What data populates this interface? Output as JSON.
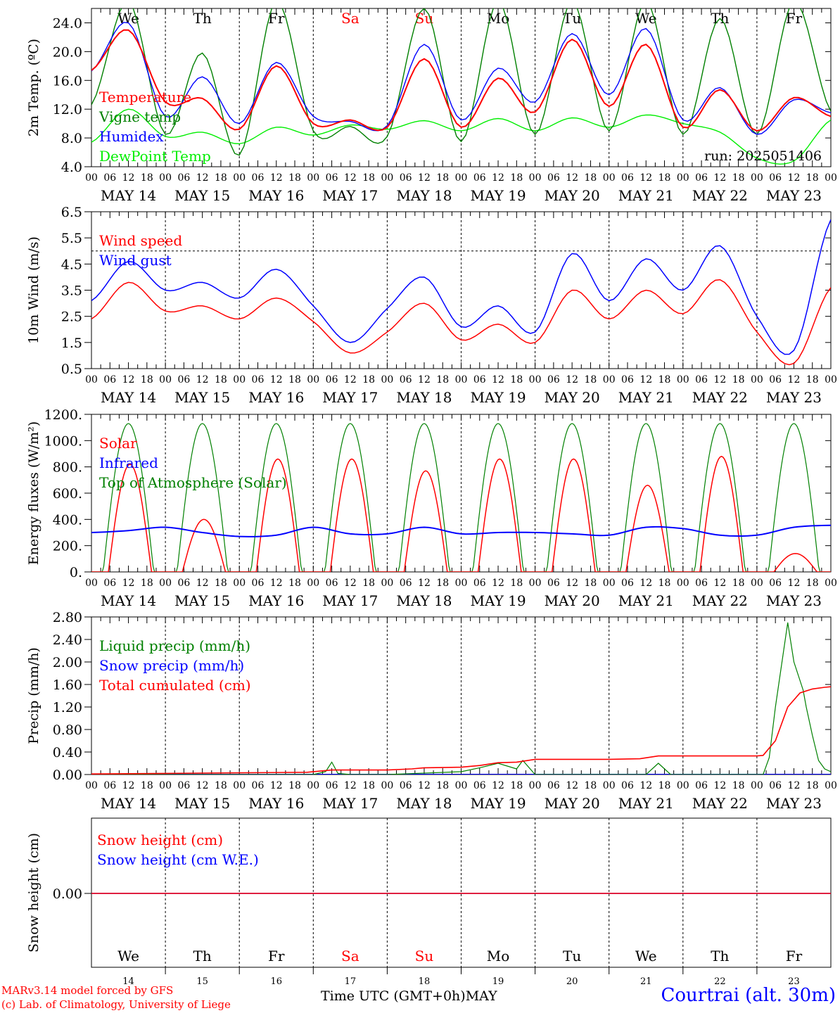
{
  "footer": {
    "model_line": "MARv3.14 model forced by GFS",
    "copyright_line": "(c) Lab. of Climatology, University of Liege",
    "axis_title": "Time UTC (GMT+0h)",
    "axis_month": "MAY",
    "station": "Courtrai (alt. 30m)"
  },
  "colors": {
    "red": "#ff0000",
    "blue": "#0000ff",
    "green": "#008000",
    "lightgreen": "#00ee00",
    "black": "#000000"
  },
  "chart_data": [
    {
      "id": "temperature",
      "type": "line",
      "ylabel": "2m Temp. (ºC)",
      "ylim": [
        4.0,
        26.0
      ],
      "yticks": [
        "24.0",
        "20.0",
        "16.0",
        "12.0",
        "8.0",
        "4.0"
      ],
      "ytick_values": [
        24,
        20,
        16,
        12,
        8,
        4
      ],
      "day_names": [
        "We",
        "Th",
        "Fr",
        "Sa",
        "Su",
        "Mo",
        "Tu",
        "We",
        "Th",
        "Fr"
      ],
      "day_name_colors": [
        "#000000",
        "#000000",
        "#000000",
        "#ff0000",
        "#ff0000",
        "#000000",
        "#000000",
        "#000000",
        "#000000",
        "#000000"
      ],
      "run_label": "run: 2025051406",
      "x_hours": [
        0,
        12,
        24,
        36,
        48,
        60,
        72,
        84,
        96,
        108,
        120,
        132,
        144,
        156,
        168,
        180,
        192,
        204,
        216,
        228,
        240
      ],
      "series": [
        {
          "name": "Temperature",
          "color": "#ff0000",
          "values": [
            17.4,
            23.0,
            13.0,
            13.5,
            9.2,
            18.0,
            10.0,
            10.5,
            9.5,
            19.0,
            9.5,
            16.3,
            11.6,
            21.7,
            12.4,
            21.0,
            9.5,
            14.7,
            9.0,
            13.6,
            11.0
          ]
        },
        {
          "name": "Vigne temp",
          "color": "#008000",
          "values": [
            12.6,
            27.0,
            8.5,
            19.8,
            5.6,
            27.0,
            9.0,
            9.6,
            8.2,
            26.0,
            7.5,
            27.0,
            8.5,
            27.0,
            9.0,
            27.0,
            8.5,
            24.6,
            8.5,
            27.0,
            11.7
          ]
        },
        {
          "name": "Humidex",
          "color": "#0000ff",
          "values": [
            17.3,
            24.0,
            11.0,
            16.5,
            10.0,
            18.5,
            11.0,
            10.3,
            9.7,
            21.0,
            10.5,
            17.7,
            13.0,
            22.5,
            14.0,
            23.2,
            10.5,
            15.0,
            8.5,
            13.3,
            11.5
          ]
        },
        {
          "name": "DewPoint Temp",
          "color": "#00ee00",
          "values": [
            7.4,
            12.0,
            8.2,
            8.8,
            7.2,
            9.5,
            8.4,
            9.8,
            9.2,
            10.4,
            9.0,
            10.7,
            9.0,
            10.8,
            9.5,
            11.2,
            10.0,
            8.8,
            5.2,
            4.8,
            10.5
          ]
        }
      ]
    },
    {
      "id": "wind",
      "type": "line",
      "ylabel": "10m Wind (m/s)",
      "ylim": [
        0.5,
        6.5
      ],
      "yticks": [
        "6.5",
        "5.5",
        "4.5",
        "3.5",
        "2.5",
        "1.5",
        "0.5"
      ],
      "ytick_values": [
        6.5,
        5.5,
        4.5,
        3.5,
        2.5,
        1.5,
        0.5
      ],
      "threshold": 5.0,
      "x_hours": [
        0,
        12,
        24,
        36,
        48,
        60,
        72,
        84,
        96,
        108,
        120,
        132,
        144,
        156,
        168,
        180,
        192,
        204,
        216,
        228,
        240
      ],
      "series": [
        {
          "name": "Wind speed",
          "color": "#ff0000",
          "values": [
            2.4,
            3.8,
            2.7,
            2.9,
            2.4,
            3.2,
            2.3,
            1.1,
            1.9,
            3.0,
            1.6,
            2.2,
            1.5,
            3.5,
            2.4,
            3.5,
            2.6,
            3.9,
            1.9,
            0.7,
            3.6
          ]
        },
        {
          "name": "Wind gust",
          "color": "#0000ff",
          "values": [
            3.1,
            4.6,
            3.5,
            3.8,
            3.2,
            4.3,
            2.9,
            1.5,
            2.8,
            4.0,
            2.1,
            2.9,
            1.9,
            4.9,
            3.1,
            4.7,
            3.5,
            5.2,
            2.5,
            1.2,
            6.2
          ]
        }
      ]
    },
    {
      "id": "energy",
      "type": "line",
      "ylabel": "Energy fluxes (W/m²)",
      "ylim": [
        0,
        1200
      ],
      "yticks": [
        "1200.",
        "1000.",
        "800.",
        "600.",
        "400.",
        "200.",
        "0."
      ],
      "ytick_values": [
        1200,
        1000,
        800,
        600,
        400,
        200,
        0
      ],
      "x_hours": [
        0,
        12,
        24,
        36,
        48,
        60,
        72,
        84,
        96,
        108,
        120,
        132,
        144,
        156,
        168,
        180,
        192,
        204,
        216,
        228,
        240
      ],
      "series": [
        {
          "name": "Solar",
          "color": "#ff0000",
          "daily_peak": [
            820,
            400,
            860,
            860,
            770,
            860,
            860,
            660,
            880,
            140
          ]
        },
        {
          "name": "Infrared",
          "color": "#0000ff",
          "values": [
            300,
            315,
            340,
            300,
            270,
            280,
            340,
            290,
            290,
            340,
            290,
            300,
            300,
            290,
            280,
            340,
            330,
            280,
            280,
            340,
            355
          ]
        },
        {
          "name": "Top of Atmosphere (Solar)",
          "color": "#008000",
          "daily_peak": 1130
        }
      ]
    },
    {
      "id": "precip",
      "type": "line",
      "ylabel": "Precip (mm/h)",
      "ylim": [
        0,
        2.8
      ],
      "yticks": [
        "2.80",
        "2.40",
        "2.00",
        "1.60",
        "1.20",
        "0.80",
        "0.40",
        "0.00"
      ],
      "ytick_values": [
        2.8,
        2.4,
        2.0,
        1.6,
        1.2,
        0.8,
        0.4,
        0.0
      ],
      "series": [
        {
          "name": "Liquid precip (mm/h)",
          "color": "#008000",
          "x": [
            0,
            72,
            76,
            78,
            80,
            84,
            96,
            120,
            126,
            132,
            138,
            140,
            144,
            168,
            180,
            184,
            188,
            200,
            218,
            220,
            222,
            226,
            228,
            231,
            232,
            234,
            236,
            238,
            240
          ],
          "values": [
            0,
            0,
            0.05,
            0.22,
            0.02,
            0,
            0,
            0.05,
            0.12,
            0.2,
            0.1,
            0.25,
            0,
            0,
            0,
            0.2,
            0,
            0,
            0,
            0.3,
            1.2,
            2.7,
            2.0,
            1.5,
            1.2,
            0.7,
            0.25,
            0.1,
            0.05
          ]
        },
        {
          "name": "Snow precip (mm/h)",
          "color": "#0000ff",
          "x": [
            0,
            240
          ],
          "values": [
            0,
            0
          ]
        },
        {
          "name": "Total cumulated (cm)",
          "color": "#ff0000",
          "x": [
            0,
            24,
            48,
            70,
            78,
            84,
            96,
            104,
            108,
            120,
            126,
            132,
            138,
            144,
            168,
            178,
            184,
            192,
            216,
            218,
            222,
            226,
            230,
            234,
            238,
            240
          ],
          "values": [
            0.01,
            0.02,
            0.03,
            0.04,
            0.08,
            0.08,
            0.08,
            0.1,
            0.12,
            0.13,
            0.16,
            0.21,
            0.22,
            0.27,
            0.27,
            0.28,
            0.33,
            0.33,
            0.33,
            0.34,
            0.6,
            1.2,
            1.45,
            1.52,
            1.55,
            1.56
          ]
        }
      ]
    },
    {
      "id": "snow",
      "type": "line",
      "ylabel": "Snow height (cm)",
      "yticks": [
        "0.00"
      ],
      "ytick_values": [
        0
      ],
      "day_numbers": [
        "14",
        "15",
        "16",
        "17",
        "18",
        "19",
        "20",
        "21",
        "22",
        "23"
      ],
      "series": [
        {
          "name": "Snow height (cm)",
          "color": "#ff0000",
          "values": [
            0,
            0
          ]
        },
        {
          "name": "Snow height (cm W.E.)",
          "color": "#0000ff",
          "values": [
            0,
            0
          ]
        }
      ]
    }
  ],
  "hour_labels": [
    "00",
    "06",
    "12",
    "18"
  ],
  "date_labels": [
    "MAY 14",
    "MAY 15",
    "MAY 16",
    "MAY 17",
    "MAY 18",
    "MAY 19",
    "MAY 20",
    "MAY 21",
    "MAY 22",
    "MAY 23"
  ]
}
